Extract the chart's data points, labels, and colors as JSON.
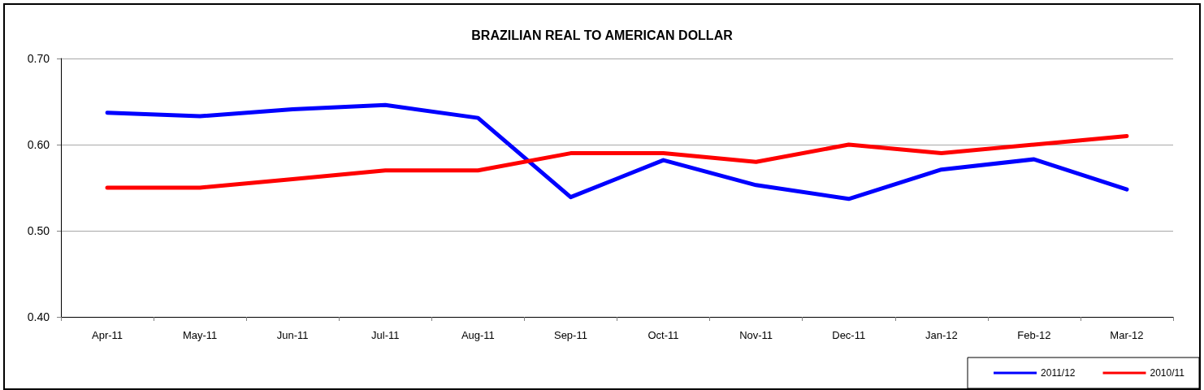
{
  "chart_data": {
    "type": "line",
    "title": "BRAZILIAN REAL TO AMERICAN DOLLAR",
    "categories": [
      "Apr-11",
      "May-11",
      "Jun-11",
      "Jul-11",
      "Aug-11",
      "Sep-11",
      "Oct-11",
      "Nov-11",
      "Dec-11",
      "Jan-12",
      "Feb-12",
      "Mar-12"
    ],
    "series": [
      {
        "name": "2011/12",
        "color": "#0000ff",
        "values": [
          0.637,
          0.633,
          0.641,
          0.646,
          0.631,
          0.539,
          0.582,
          0.553,
          0.537,
          0.571,
          0.583,
          0.548
        ]
      },
      {
        "name": "2010/11",
        "color": "#ff0000",
        "values": [
          0.55,
          0.55,
          0.56,
          0.57,
          0.57,
          0.59,
          0.59,
          0.58,
          0.6,
          0.59,
          0.6,
          0.61
        ]
      }
    ],
    "ylim": [
      0.4,
      0.7
    ],
    "yticks": [
      {
        "value": 0.4,
        "label": "0.40"
      },
      {
        "value": 0.5,
        "label": "0.50"
      },
      {
        "value": 0.6,
        "label": "0.60"
      },
      {
        "value": 0.7,
        "label": "0.70"
      }
    ],
    "grid": "y",
    "legend": "bottom right",
    "marker": "none",
    "line_style": "solid"
  }
}
